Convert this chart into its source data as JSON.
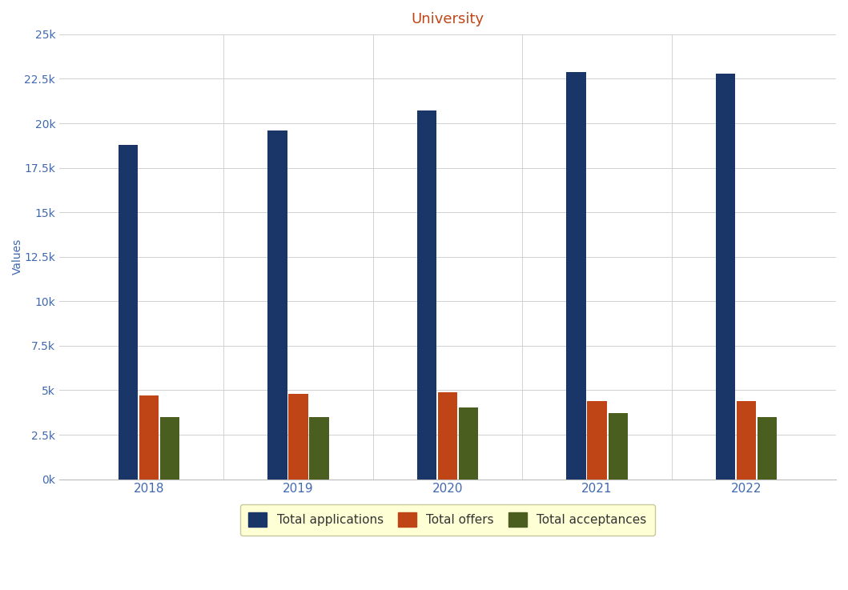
{
  "title": "University",
  "years": [
    "2018",
    "2019",
    "2020",
    "2021",
    "2022"
  ],
  "total_applications": [
    18800,
    19600,
    20700,
    22900,
    22800
  ],
  "total_offers": [
    4700,
    4800,
    4900,
    4400,
    4400
  ],
  "total_acceptances": [
    3500,
    3500,
    4050,
    3700,
    3500
  ],
  "colors": {
    "applications": "#1a3567",
    "offers": "#bf4516",
    "acceptances": "#4a5e20"
  },
  "ylabel": "Values",
  "ylim": [
    0,
    25000
  ],
  "yticks": [
    0,
    2500,
    5000,
    7500,
    10000,
    12500,
    15000,
    17500,
    20000,
    22500,
    25000
  ],
  "legend_labels": [
    "Total applications",
    "Total offers",
    "Total acceptances"
  ],
  "legend_bg": "#ffffcc",
  "background_color": "#ffffff",
  "title_color": "#bf4516",
  "axis_label_color": "#4169b0",
  "tick_label_color": "#4169b0"
}
